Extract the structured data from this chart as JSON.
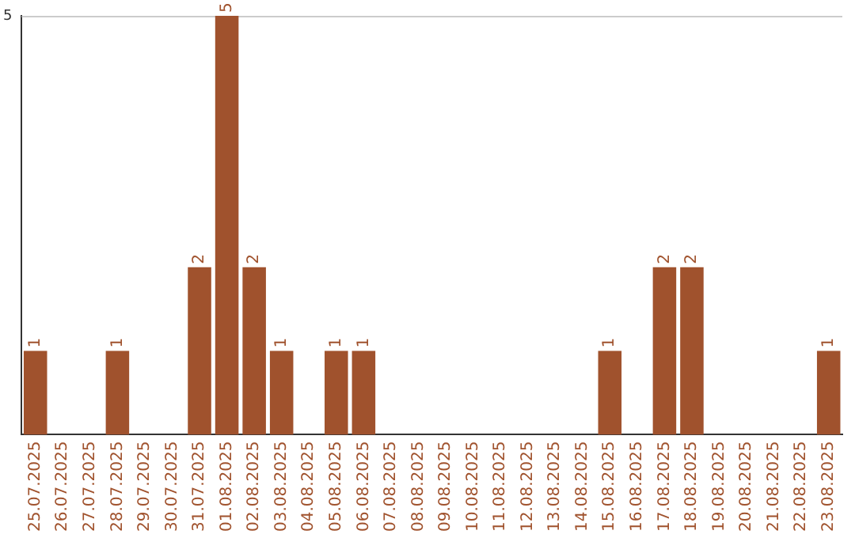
{
  "chart_data": {
    "type": "bar",
    "categories": [
      "25.07.2025",
      "26.07.2025",
      "27.07.2025",
      "28.07.2025",
      "29.07.2025",
      "30.07.2025",
      "31.07.2025",
      "01.08.2025",
      "02.08.2025",
      "03.08.2025",
      "04.08.2025",
      "05.08.2025",
      "06.08.2025",
      "07.08.2025",
      "08.08.2025",
      "09.08.2025",
      "10.08.2025",
      "11.08.2025",
      "12.08.2025",
      "13.08.2025",
      "14.08.2025",
      "15.08.2025",
      "16.08.2025",
      "17.08.2025",
      "18.08.2025",
      "19.08.2025",
      "20.08.2025",
      "21.08.2025",
      "22.08.2025",
      "23.08.2025"
    ],
    "values": [
      1,
      0,
      0,
      1,
      0,
      0,
      2,
      5,
      2,
      1,
      0,
      1,
      1,
      0,
      0,
      0,
      0,
      0,
      0,
      0,
      0,
      1,
      0,
      2,
      2,
      0,
      0,
      0,
      0,
      1
    ],
    "value_labels": [
      "1",
      null,
      null,
      "1",
      null,
      null,
      "2",
      "5",
      "2",
      "1",
      null,
      "1",
      "1",
      null,
      null,
      null,
      null,
      null,
      null,
      null,
      null,
      "1",
      null,
      "2",
      "2",
      null,
      null,
      null,
      null,
      "1"
    ],
    "color": "#a0522d",
    "ylim": [
      0,
      5
    ],
    "yticks": [
      5
    ],
    "legend": false
  }
}
